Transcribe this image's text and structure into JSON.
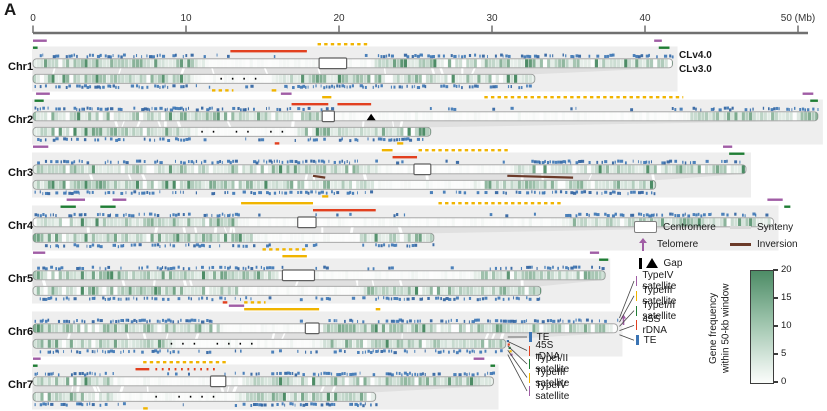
{
  "panel_label": "A",
  "axis": {
    "range_mb": [
      0,
      50
    ],
    "ticks": [
      0,
      10,
      20,
      30,
      40,
      50
    ],
    "tick_labels": [
      "0",
      "10",
      "20",
      "30",
      "40",
      "50 (Mb)"
    ]
  },
  "versions": {
    "v4": "CLv4.0",
    "v3": "CLv3.0"
  },
  "legend": {
    "centromere": "Centromere",
    "synteny": "Synteny",
    "telomere": "Telomere",
    "inversion": "Inversion",
    "gap": "Gap",
    "satellite_items": [
      {
        "label": "TypeIV satellite",
        "color": "#a05da5"
      },
      {
        "label": "TypeIII satellite",
        "color": "#f0b400"
      },
      {
        "label": "TypeI/II satellite",
        "color": "#1f7d34"
      },
      {
        "label": "45S rDNA",
        "color": "#e2401f"
      },
      {
        "label": "TE",
        "color": "#3a74b4"
      }
    ],
    "callout_items": [
      {
        "label": "TE",
        "color": "#3a74b4"
      },
      {
        "label": "45S rDNA",
        "color": "#e2401f"
      },
      {
        "label": "TypeI/II satellite",
        "color": "#1f7d34"
      },
      {
        "label": "TypeIII satellite",
        "color": "#f0b400"
      },
      {
        "label": "TypeIV satellite",
        "color": "#a05da5"
      }
    ]
  },
  "colorbar": {
    "title_line1": "Gene frequency",
    "title_line2": "within 50-kb window",
    "ticks": [
      20,
      15,
      10,
      5,
      0
    ],
    "top_color": "#4d8c66",
    "bottom_color": "#ffffff"
  },
  "colors": {
    "typeIV_telomere": "#a05da5",
    "typeIII": "#f0b400",
    "typeI_II": "#1f7d34",
    "rdna_45s": "#e2401f",
    "te": "#3a74b4",
    "te_dark": "#2b5f9e",
    "inversion": "#6b3a28",
    "synteny": "#e0e0e0",
    "panel": "#eeeeee",
    "bar_border": "#9e9e9e",
    "centromere_border": "#5f5f5f",
    "heat_green": "#4d8c66",
    "axis": "#707070",
    "gap": "#000000"
  },
  "chart_data": {
    "type": "genome-ideogram",
    "x_unit": "Mb",
    "track_types": {
      "t4": "TypeIV satellite (telomere)",
      "t3": "TypeIII satellite",
      "t12": "TypeI/II satellite",
      "rdna": "45S rDNA",
      "te": "TE"
    },
    "chromosomes": [
      {
        "name": "Chr1",
        "v4_mb": 41.8,
        "v3_mb": 32.8,
        "centromere_mb": [
          18.7,
          20.5
        ],
        "pale4": [
          11.5,
          21.8
        ],
        "pale3": [
          11.0,
          15.3
        ],
        "top_marks": [
          {
            "t": "t4",
            "s": 0,
            "e": 0.9
          },
          {
            "t": "t12",
            "s": 0,
            "e": 0.3
          },
          {
            "t": "rdna",
            "s": 12.9,
            "e": 17.9
          },
          {
            "t": "t3",
            "s": 18.6,
            "e": 22.0,
            "d": true
          },
          {
            "t": "t4",
            "s": 40.6,
            "e": 41.1
          },
          {
            "t": "t12",
            "s": 40.9,
            "e": 41.6
          }
        ],
        "bottom_marks": [
          {
            "t": "t3",
            "s": 11.7,
            "e": 13.1,
            "d": true
          },
          {
            "t": "t3",
            "s": 15.6,
            "e": 15.9
          }
        ],
        "v3_gap_dots_mb": [
          11.5,
          14.8
        ]
      },
      {
        "name": "Chr2",
        "v4_mb": 51.3,
        "v3_mb": 26.0,
        "centromere_mb": [
          18.9,
          19.7
        ],
        "pale4": [
          19.7,
          42.5
        ],
        "pale3": [
          10.8,
          16.8
        ],
        "top_marks": [
          {
            "t": "t4",
            "s": 0.2,
            "e": 1.1
          },
          {
            "t": "t12",
            "s": 0.1,
            "e": 0.7
          },
          {
            "t": "t4",
            "s": 16.2,
            "e": 16.9
          },
          {
            "t": "rdna",
            "s": 16.9,
            "e": 19.3
          },
          {
            "t": "rdna",
            "s": 19.9,
            "e": 22.1
          },
          {
            "t": "t3",
            "s": 18.9,
            "e": 19.5
          },
          {
            "t": "t3",
            "s": 29.5,
            "e": 42.5,
            "d": true
          },
          {
            "t": "t4",
            "s": 50.3,
            "e": 51.0
          },
          {
            "t": "t12",
            "s": 50.8,
            "e": 51.3
          }
        ],
        "bottom_marks": [
          {
            "t": "rdna",
            "s": 15.8,
            "e": 16.1
          },
          {
            "t": "t3",
            "s": 23.8,
            "e": 24.2
          }
        ],
        "gap_triangles_mb": [
          22.1
        ],
        "v3_gap_dots_mb": [
          11.0,
          16.5
        ]
      },
      {
        "name": "Chr3",
        "v4_mb": 46.6,
        "v3_mb": 40.7,
        "centromere_mb": [
          24.9,
          26.0
        ],
        "pale4": [
          22.5,
          31.0
        ],
        "pale3": [
          22.4,
          28.5
        ],
        "top_marks": [
          {
            "t": "t4",
            "s": 0,
            "e": 1.0
          },
          {
            "t": "t3",
            "s": 22.8,
            "e": 23.5
          },
          {
            "t": "rdna",
            "s": 23.5,
            "e": 25.1
          },
          {
            "t": "t3",
            "s": 25.2,
            "e": 31.2,
            "d": true
          },
          {
            "t": "t4",
            "s": 45.1,
            "e": 45.7
          },
          {
            "t": "t12",
            "s": 45.5,
            "e": 46.5
          }
        ],
        "bottom_marks": [
          {
            "t": "t3",
            "s": 18.9,
            "e": 19.3
          }
        ],
        "inversions_mb": [
          [
            18.3,
            19.1
          ],
          [
            31.0,
            35.3
          ]
        ]
      },
      {
        "name": "Chr4",
        "v4_mb": 48.4,
        "v3_mb": 26.2,
        "centromere_mb": [
          17.3,
          18.5
        ],
        "pale4": [
          13.8,
          34.3
        ],
        "pale3": [
          14.8,
          21.0
        ],
        "top_marks": [
          {
            "t": "t4",
            "s": 2.2,
            "e": 3.4
          },
          {
            "t": "t4",
            "s": 5.2,
            "e": 6.1
          },
          {
            "t": "t12",
            "s": 1.8,
            "e": 2.8
          },
          {
            "t": "t12",
            "s": 4.4,
            "e": 5.4
          },
          {
            "t": "t3",
            "s": 13.6,
            "e": 18.3
          },
          {
            "t": "rdna",
            "s": 18.3,
            "e": 22.4
          },
          {
            "t": "t3",
            "s": 26.5,
            "e": 34.5,
            "d": true
          },
          {
            "t": "t4",
            "s": 48.0,
            "e": 49.0
          },
          {
            "t": "t12",
            "s": 49.1,
            "e": 49.5
          }
        ],
        "bottom_marks": [
          {
            "t": "t3",
            "s": 15.0,
            "e": 17.8,
            "d": true
          }
        ]
      },
      {
        "name": "Chr5",
        "v4_mb": 37.4,
        "v3_mb": 33.2,
        "centromere_mb": [
          16.3,
          18.4
        ],
        "pale4": [
          16.0,
          28.6
        ],
        "pale3": [
          13.8,
          20.9
        ],
        "top_marks": [
          {
            "t": "t4",
            "s": 0,
            "e": 0.8
          },
          {
            "t": "t3",
            "s": 16.3,
            "e": 17.9
          },
          {
            "t": "t4",
            "s": 36.4,
            "e": 37.0
          },
          {
            "t": "t12",
            "s": 37.0,
            "e": 37.6
          }
        ],
        "bottom_marks": [
          {
            "t": "rdna",
            "s": 12.4,
            "e": 12.7
          },
          {
            "t": "t3",
            "s": 13.8,
            "e": 15.2,
            "d": true
          }
        ]
      },
      {
        "name": "Chr6",
        "v4_mb": 38.2,
        "v3_mb": 30.9,
        "centromere_mb": [
          17.8,
          18.7
        ],
        "pale4": [
          12.6,
          18.6
        ],
        "pale3": [
          9.5,
          18.6
        ],
        "top_marks": [
          {
            "t": "t4",
            "s": 12.8,
            "e": 13.8
          },
          {
            "t": "t3",
            "s": 13.8,
            "e": 18.7
          },
          {
            "t": "t3",
            "s": 22.4,
            "e": 22.7
          }
        ],
        "bottom_marks": [],
        "telomere_arrow_mb": 38.4,
        "v3_end_cluster": true,
        "v3_gap_dots_mb": [
          9.0,
          15.0
        ]
      },
      {
        "name": "Chr7",
        "v4_mb": 30.1,
        "v3_mb": 22.4,
        "centromere_mb": [
          11.6,
          12.6
        ],
        "pale4": [
          5.8,
          13.0
        ],
        "pale3": [
          5.5,
          13.0
        ],
        "top_marks": [
          {
            "t": "t4",
            "s": 0,
            "e": 0.5
          },
          {
            "t": "t12",
            "s": 0,
            "e": 0.3
          },
          {
            "t": "rdna",
            "s": 6.7,
            "e": 7.6
          },
          {
            "t": "rdna",
            "s": 8.0,
            "e": 12.0,
            "d": true
          },
          {
            "t": "t3",
            "s": 7.2,
            "e": 12.6,
            "d": true
          },
          {
            "t": "t4",
            "s": 28.8,
            "e": 29.5
          },
          {
            "t": "t12",
            "s": 29.9,
            "e": 30.2
          }
        ],
        "bottom_marks": [
          {
            "t": "t3",
            "s": 7.2,
            "e": 7.5
          }
        ],
        "v3_gap_dots_mb": [
          8.0,
          12.0
        ]
      }
    ]
  }
}
